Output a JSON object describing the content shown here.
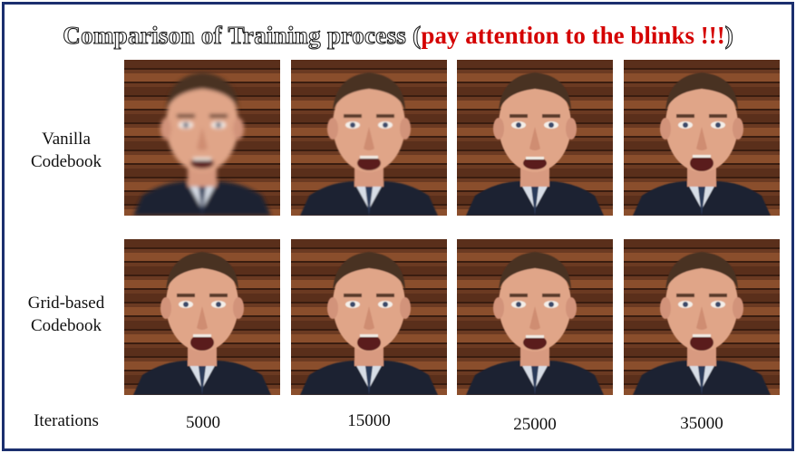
{
  "title": {
    "main": "Comparison of Training process (",
    "highlight": "pay attention to the blinks !!!",
    "close": ")"
  },
  "rows": [
    {
      "label_line1": "Vanilla",
      "label_line2": "Codebook"
    },
    {
      "label_line1": "Grid-based",
      "label_line2": "Codebook"
    }
  ],
  "footer": {
    "label": "Iterations",
    "columns": [
      "5000",
      "15000",
      "25000",
      "35000"
    ]
  },
  "colors": {
    "frame": "#1b2f6e",
    "highlight": "#d40000"
  }
}
